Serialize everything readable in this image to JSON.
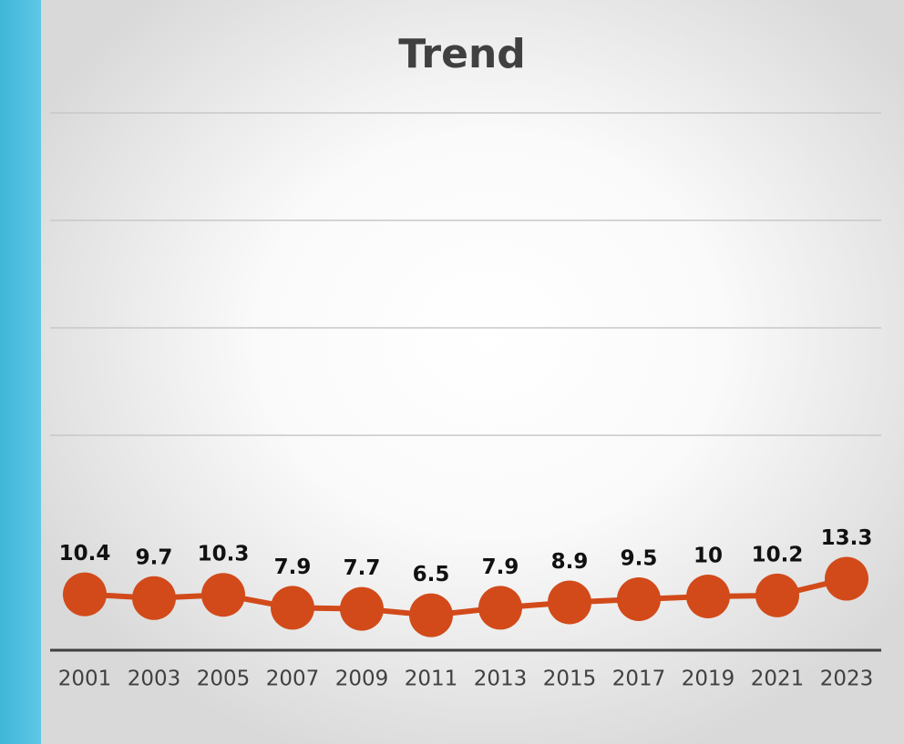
{
  "chart_data": {
    "type": "line",
    "title": "Trend",
    "categories": [
      "2001",
      "2003",
      "2005",
      "2007",
      "2009",
      "2011",
      "2013",
      "2015",
      "2017",
      "2019",
      "2021",
      "2023"
    ],
    "series": [
      {
        "name": "Trend",
        "color": "#d24a1a",
        "values": [
          10.4,
          9.7,
          10.3,
          7.9,
          7.7,
          6.5,
          7.9,
          8.9,
          9.5,
          10,
          10.2,
          13.3
        ]
      }
    ],
    "ylim": [
      0,
      100
    ],
    "yticks": [
      40,
      60,
      80,
      100
    ],
    "grid": true
  }
}
